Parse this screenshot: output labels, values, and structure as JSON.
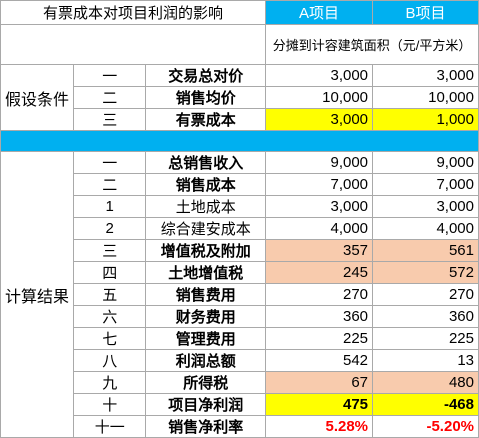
{
  "header": {
    "title": "有票成本对项目利润的影响",
    "col_a": "A项目",
    "col_b": "B项目",
    "unit_note": "分摊到计容建筑面积（元/平方米）"
  },
  "assumptions": {
    "section_label": "假设条件",
    "rows": [
      {
        "no": "一",
        "name": "交易总对价",
        "a": "3,000",
        "b": "3,000"
      },
      {
        "no": "二",
        "name": "销售均价",
        "a": "10,000",
        "b": "10,000"
      },
      {
        "no": "三",
        "name": "有票成本",
        "a": "3,000",
        "b": "1,000"
      }
    ]
  },
  "results": {
    "section_label": "计算结果",
    "rows": [
      {
        "no": "一",
        "name": "总销售收入",
        "a": "9,000",
        "b": "9,000"
      },
      {
        "no": "二",
        "name": "销售成本",
        "a": "7,000",
        "b": "7,000"
      },
      {
        "no": "1",
        "name": "土地成本",
        "a": "3,000",
        "b": "3,000"
      },
      {
        "no": "2",
        "name": "综合建安成本",
        "a": "4,000",
        "b": "4,000"
      },
      {
        "no": "三",
        "name": "增值税及附加",
        "a": "357",
        "b": "561"
      },
      {
        "no": "四",
        "name": "土地增值税",
        "a": "245",
        "b": "572"
      },
      {
        "no": "五",
        "name": "销售费用",
        "a": "270",
        "b": "270"
      },
      {
        "no": "六",
        "name": "财务费用",
        "a": "360",
        "b": "360"
      },
      {
        "no": "七",
        "name": "管理费用",
        "a": "225",
        "b": "225"
      },
      {
        "no": "八",
        "name": "利润总额",
        "a": "542",
        "b": "13"
      },
      {
        "no": "九",
        "name": "所得税",
        "a": "67",
        "b": "480"
      },
      {
        "no": "十",
        "name": "项目净利润",
        "a": "475",
        "b": "-468"
      },
      {
        "no": "十一",
        "name": "销售净利率",
        "a": "5.28%",
        "b": "-5.20%"
      }
    ]
  },
  "colors": {
    "header_blue": "#00b0f0",
    "highlight_yellow": "#ffff00",
    "highlight_peach": "#f8cbad",
    "negative_red": "#ff0000"
  }
}
